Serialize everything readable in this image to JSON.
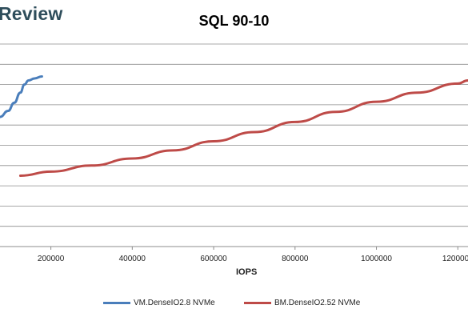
{
  "brand": {
    "text": "Review"
  },
  "chart_data": {
    "type": "line",
    "title": "SQL 90-10",
    "xlabel": "IOPS",
    "ylabel": "",
    "xlim": [
      75000,
      1225000
    ],
    "ylim": [
      0,
      10
    ],
    "grid": true,
    "x_ticks": [
      200000,
      400000,
      600000,
      800000,
      1000000,
      1200000
    ],
    "x_tick_labels": [
      "200000",
      "400000",
      "600000",
      "800000",
      "1000000",
      "1200000"
    ],
    "legend_position": "bottom",
    "series": [
      {
        "name": "VM.DenseIO2.8 NVMe",
        "color": "#4a7ebb",
        "x": [
          75000,
          95000,
          110000,
          125000,
          135000,
          145000,
          160000,
          178000
        ],
        "y": [
          6.4,
          6.7,
          7.1,
          7.6,
          8.0,
          8.2,
          8.3,
          8.4
        ]
      },
      {
        "name": "BM.DenseIO2.52 NVMe",
        "color": "#be4b48",
        "x": [
          125000,
          200000,
          300000,
          400000,
          500000,
          600000,
          700000,
          800000,
          900000,
          1000000,
          1100000,
          1200000,
          1225000
        ],
        "y": [
          3.5,
          3.7,
          4.0,
          4.35,
          4.75,
          5.2,
          5.65,
          6.15,
          6.65,
          7.15,
          7.6,
          8.05,
          8.2
        ]
      }
    ]
  }
}
